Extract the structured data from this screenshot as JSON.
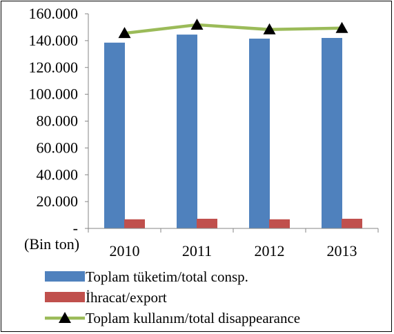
{
  "chart_data": {
    "type": "bar",
    "categories": [
      "2010",
      "2011",
      "2012",
      "2013"
    ],
    "series": [
      {
        "name": "Toplam tüketim/total consp.",
        "kind": "bar",
        "color": "#4f81bd",
        "values": [
          138500,
          144500,
          141500,
          142000
        ]
      },
      {
        "name": "İhracat/export",
        "kind": "bar",
        "color": "#c0504d",
        "values": [
          6800,
          7200,
          6800,
          7200
        ]
      },
      {
        "name": "Toplam kullanım/total disappearance",
        "kind": "line",
        "color": "#9bbb59",
        "marker": "triangle",
        "values": [
          145500,
          151800,
          148300,
          149300
        ]
      }
    ],
    "ylim": [
      0,
      160000
    ],
    "yticks": [
      {
        "value": 0,
        "label": "-"
      },
      {
        "value": 20000,
        "label": "20.000"
      },
      {
        "value": 40000,
        "label": "40.000"
      },
      {
        "value": 60000,
        "label": "60.000"
      },
      {
        "value": 80000,
        "label": "80.000"
      },
      {
        "value": 100000,
        "label": "100.000"
      },
      {
        "value": 120000,
        "label": "120.000"
      },
      {
        "value": 140000,
        "label": "140.000"
      },
      {
        "value": 160000,
        "label": "160.000"
      }
    ],
    "unit_label": "(Bin ton)",
    "grid": false,
    "legend_position": "bottom-left"
  }
}
